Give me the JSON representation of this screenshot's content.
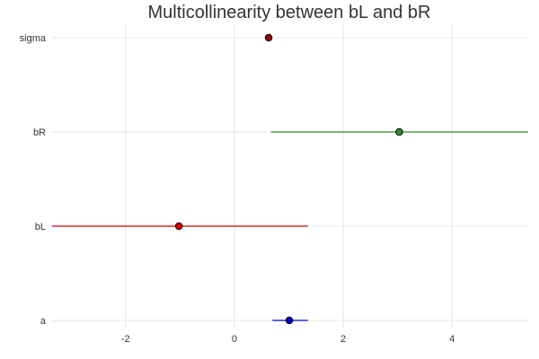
{
  "chart_data": {
    "type": "scatter",
    "title": "Multicollinearity between bL and bR",
    "xlabel": "",
    "ylabel": "",
    "xlim": [
      -3.35,
      5.4
    ],
    "x_ticks": [
      -2,
      0,
      2,
      4
    ],
    "x_tick_labels": [
      "-2",
      "0",
      "2",
      "4"
    ],
    "grid": true,
    "legend": "none",
    "categories": [
      "a",
      "bL",
      "bR",
      "sigma"
    ],
    "points": [
      {
        "label": "a",
        "estimate": 1.01,
        "lower": 0.7,
        "upper": 1.35,
        "color": "#0000cc"
      },
      {
        "label": "bL",
        "estimate": -1.02,
        "lower": -3.35,
        "upper": 1.35,
        "color": "#cc0000"
      },
      {
        "label": "bR",
        "estimate": 3.03,
        "lower": 0.67,
        "upper": 5.4,
        "color": "#2e8b2e"
      },
      {
        "label": "sigma",
        "estimate": 0.63,
        "lower": 0.58,
        "upper": 0.68,
        "color": "#8b0000"
      }
    ]
  }
}
